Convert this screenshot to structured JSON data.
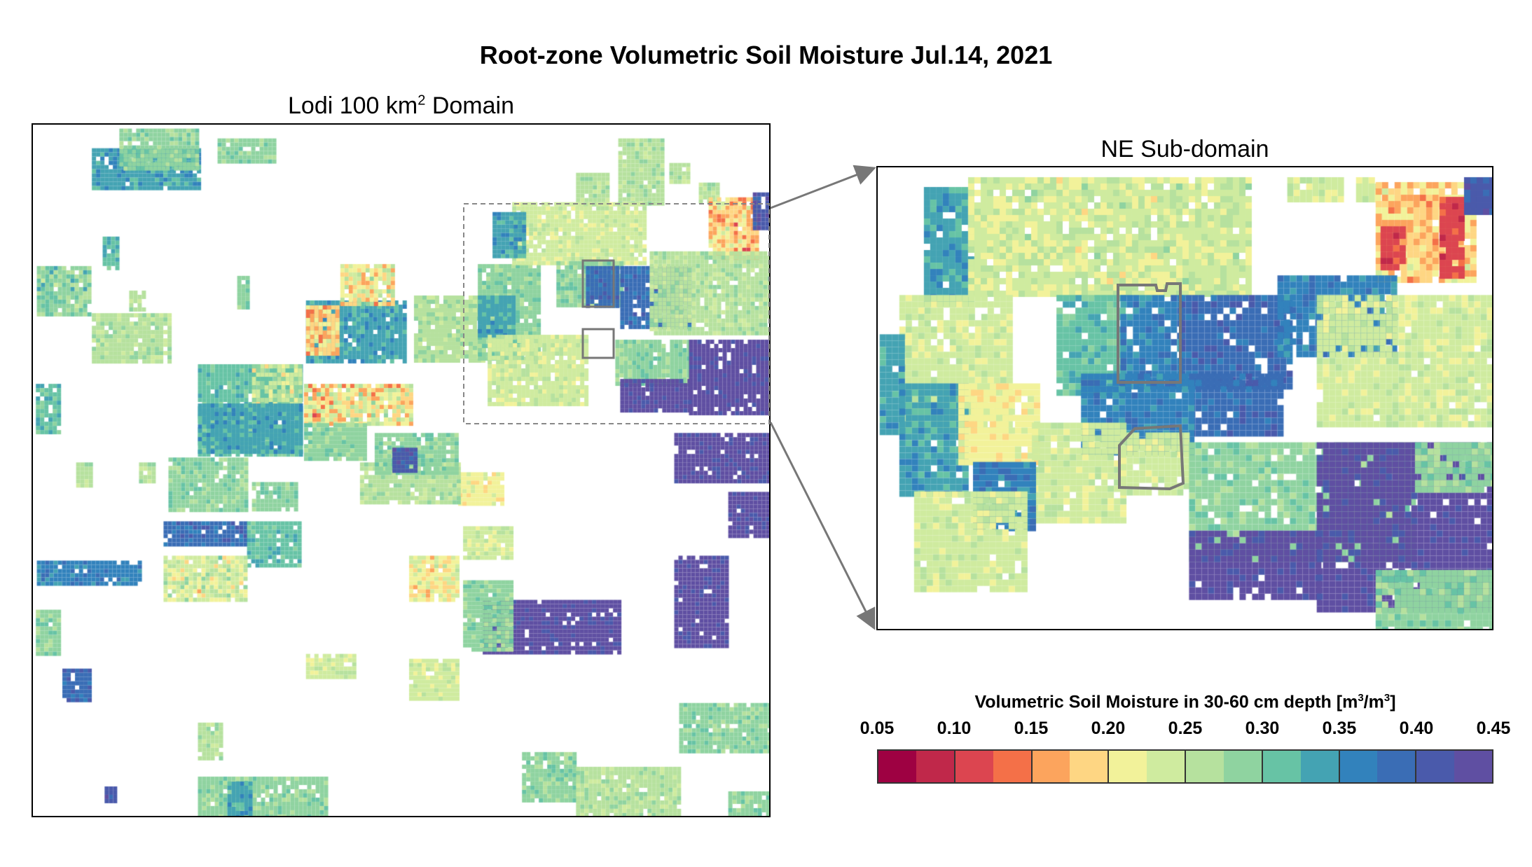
{
  "title": "Root-zone Volumetric Soil Moisture Jul.14, 2021",
  "left_map": {
    "title_prefix": "Lodi 100 km",
    "title_sup": "2",
    "title_suffix": " Domain"
  },
  "right_map": {
    "title": "NE Sub-domain"
  },
  "colorbar": {
    "label_prefix": "Volumetric Soil Moisture in 30-60 cm depth [m",
    "label_sup1": "3",
    "label_mid": "/m",
    "label_sup2": "3",
    "label_suffix": "]",
    "range": [
      0.05,
      0.45
    ],
    "step": 0.025,
    "ticks": [
      "0.05",
      "0.10",
      "0.15",
      "0.20",
      "0.25",
      "0.30",
      "0.35",
      "0.40",
      "0.45"
    ],
    "colors": [
      "#9e0142",
      "#c0284a",
      "#dc4550",
      "#f47048",
      "#fca45d",
      "#fed683",
      "#f2f29a",
      "#cfeb9f",
      "#b6e19e",
      "#8fd3a0",
      "#67c3a5",
      "#44a3b3",
      "#3282bc",
      "#3a6db5",
      "#4a5aab",
      "#5f4fa2"
    ]
  }
}
